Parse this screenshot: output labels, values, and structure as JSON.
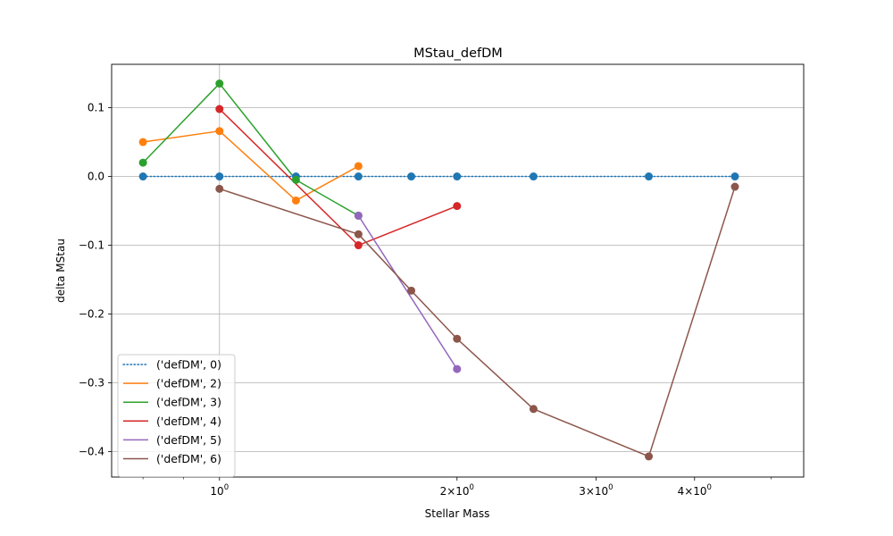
{
  "chart_data": {
    "type": "line",
    "title": "MStau_defDM",
    "xlabel": "Stellar Mass",
    "ylabel": "delta MStau",
    "xscale": "log",
    "xlim": [
      0.73,
      5.5
    ],
    "ylim": [
      -0.437,
      0.163
    ],
    "grid": true,
    "legend_position": "lower-left",
    "x_major_ticks": [
      {
        "value": 1,
        "label": "10^0"
      },
      {
        "value": 2,
        "label": "2×10^0"
      },
      {
        "value": 3,
        "label": "3×10^0"
      },
      {
        "value": 4,
        "label": "4×10^0"
      }
    ],
    "x_major_gridlines": [
      1
    ],
    "x_minor_ticks": [
      0.8,
      0.9,
      5
    ],
    "y_ticks": [
      0.1,
      0.0,
      -0.1,
      -0.2,
      -0.3,
      -0.4
    ],
    "y_tick_labels": [
      "0.1",
      "0.0",
      "−0.1",
      "−0.2",
      "−0.3",
      "−0.4"
    ],
    "series": [
      {
        "name": "('defDM', 0)",
        "color": "#1f77b4",
        "linestyle": "dotted",
        "x": [
          0.8,
          1.0,
          1.25,
          1.5,
          1.75,
          2.0,
          2.5,
          3.5,
          4.5
        ],
        "y": [
          0.0,
          0.0,
          0.0,
          0.0,
          0.0,
          0.0,
          0.0,
          0.0,
          0.0
        ]
      },
      {
        "name": "('defDM', 2)",
        "color": "#ff7f0e",
        "linestyle": "solid",
        "x": [
          0.8,
          1.0,
          1.25,
          1.5
        ],
        "y": [
          0.05,
          0.066,
          -0.035,
          0.015
        ]
      },
      {
        "name": "('defDM', 3)",
        "color": "#2ca02c",
        "linestyle": "solid",
        "x": [
          0.8,
          1.0,
          1.25,
          1.5
        ],
        "y": [
          0.02,
          0.135,
          -0.005,
          -0.057
        ]
      },
      {
        "name": "('defDM', 4)",
        "color": "#d62728",
        "linestyle": "solid",
        "x": [
          1.0,
          1.5,
          2.0
        ],
        "y": [
          0.098,
          -0.1,
          -0.043
        ]
      },
      {
        "name": "('defDM', 5)",
        "color": "#9467bd",
        "linestyle": "solid",
        "x": [
          1.5,
          2.0
        ],
        "y": [
          -0.057,
          -0.28
        ]
      },
      {
        "name": "('defDM', 6)",
        "color": "#8c564b",
        "linestyle": "solid",
        "x": [
          1.0,
          1.5,
          1.75,
          2.0,
          2.5,
          3.5,
          4.5
        ],
        "y": [
          -0.018,
          -0.084,
          -0.166,
          -0.236,
          -0.338,
          -0.407,
          -0.015
        ]
      }
    ]
  }
}
